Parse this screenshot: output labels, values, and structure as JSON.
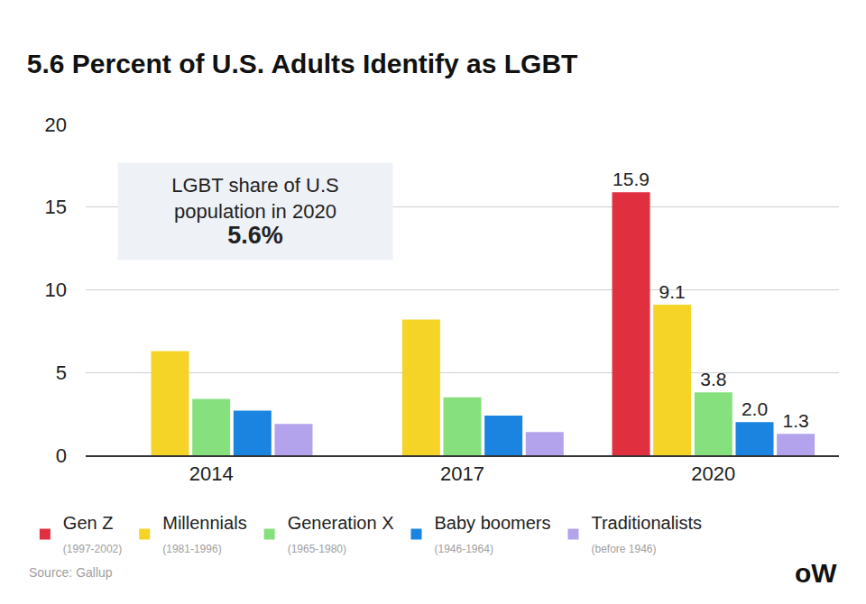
{
  "chart_data": {
    "type": "bar",
    "title": "5.6 Percent of U.S. Adults Identify as LGBT",
    "categories": [
      "2014",
      "2017",
      "2020"
    ],
    "series": [
      {
        "name": "Gen Z",
        "years": "(1997-2002)",
        "color": "#e0303f",
        "values": [
          null,
          null,
          15.9
        ],
        "value_labels": [
          null,
          null,
          "15.9"
        ]
      },
      {
        "name": "Millennials",
        "years": "(1981-1996)",
        "color": "#f5d327",
        "values": [
          6.3,
          8.2,
          9.1
        ],
        "value_labels": [
          null,
          null,
          "9.1"
        ]
      },
      {
        "name": "Generation X",
        "years": "(1965-1980)",
        "color": "#86e07e",
        "values": [
          3.4,
          3.5,
          3.8
        ],
        "value_labels": [
          null,
          null,
          "3.8"
        ]
      },
      {
        "name": "Baby boomers",
        "years": "(1946-1964)",
        "color": "#1a84e0",
        "values": [
          2.7,
          2.4,
          2.0
        ],
        "value_labels": [
          null,
          null,
          "2.0"
        ]
      },
      {
        "name": "Traditionalists",
        "years": "(before 1946)",
        "color": "#b3a3ec",
        "values": [
          1.9,
          1.4,
          1.3
        ],
        "value_labels": [
          null,
          null,
          "1.3"
        ]
      }
    ],
    "ylim": [
      0,
      20
    ],
    "yticks": [
      0,
      5,
      10,
      15,
      20
    ],
    "grid": true,
    "data_labels": true,
    "legend": "bottom",
    "callout": {
      "lines": [
        "LGBT share of U.S",
        "population in 2020"
      ],
      "value": 5.6,
      "value_label": "5.6%"
    },
    "source": "Source: Gallup",
    "logo": "oW"
  }
}
